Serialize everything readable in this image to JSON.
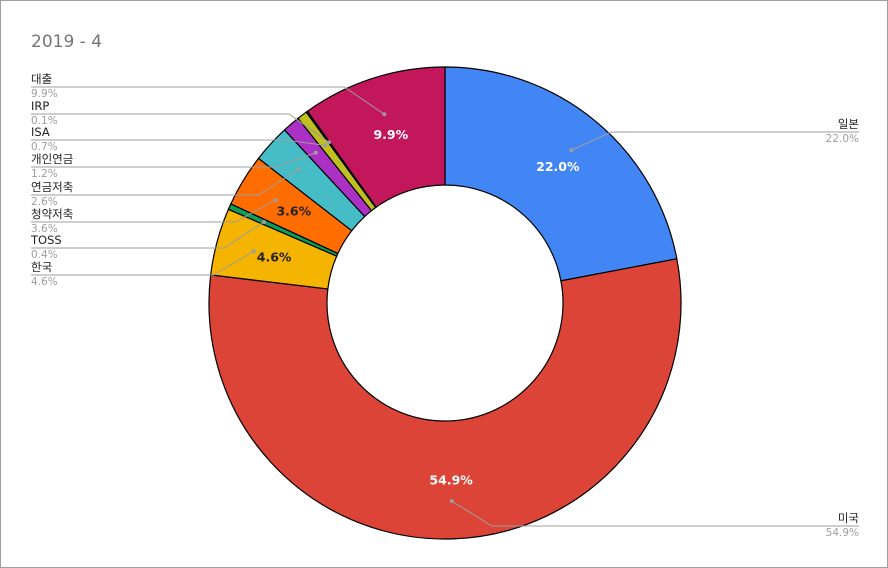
{
  "chart_data": {
    "type": "pie",
    "title": "2019 - 4",
    "donut": true,
    "legend": "labeled",
    "slices": [
      {
        "name": "일본",
        "value": 22.0,
        "label": "22.0%",
        "color": "#4285f4",
        "inside": "22.0%",
        "inside_color": "#ffffff"
      },
      {
        "name": "미국",
        "value": 54.9,
        "label": "54.9%",
        "color": "#db4437",
        "inside": "54.9%",
        "inside_color": "#ffffff"
      },
      {
        "name": "한국",
        "value": 4.6,
        "label": "4.6%",
        "color": "#f4b400",
        "inside": "4.6%",
        "inside_color": "#222222"
      },
      {
        "name": "TOSS",
        "value": 0.4,
        "label": "0.4%",
        "color": "#0f9d58",
        "inside": "",
        "inside_color": "#ffffff"
      },
      {
        "name": "청약저축",
        "value": 3.6,
        "label": "3.6%",
        "color": "#ff6d01",
        "inside": "3.6%",
        "inside_color": "#222222"
      },
      {
        "name": "연금저축",
        "value": 2.6,
        "label": "2.6%",
        "color": "#46bdc6",
        "inside": "",
        "inside_color": "#ffffff"
      },
      {
        "name": "개인연금",
        "value": 1.2,
        "label": "1.2%",
        "color": "#ab30c4",
        "inside": "",
        "inside_color": "#ffffff"
      },
      {
        "name": "ISA",
        "value": 0.7,
        "label": "0.7%",
        "color": "#bfbf1f",
        "inside": "",
        "inside_color": "#ffffff"
      },
      {
        "name": "IRP",
        "value": 0.1,
        "label": "0.1%",
        "color": "#1a3366",
        "inside": "",
        "inside_color": "#ffffff"
      },
      {
        "name": "대출",
        "value": 9.9,
        "label": "9.9%",
        "color": "#c2185b",
        "inside": "9.9%",
        "inside_color": "#ffffff"
      }
    ]
  }
}
